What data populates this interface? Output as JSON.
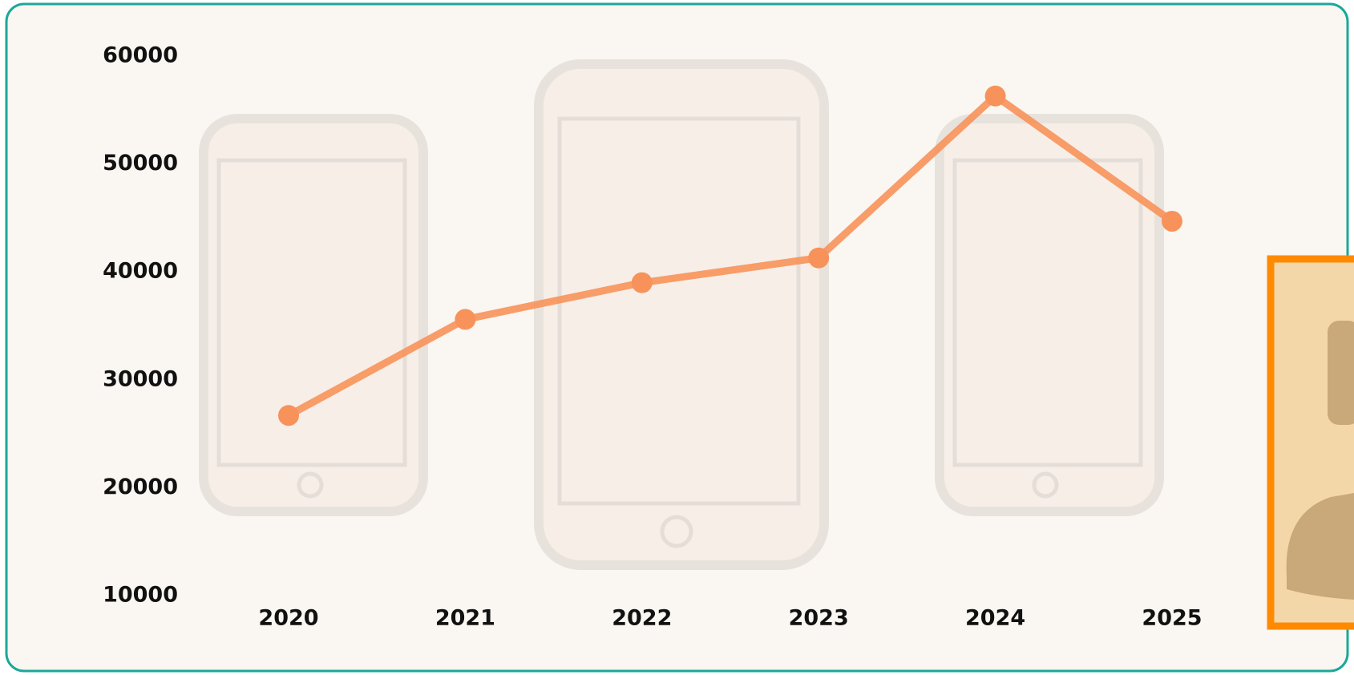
{
  "chart_data": {
    "type": "line",
    "categories": [
      "2020",
      "2021",
      "2022",
      "2023",
      "2024",
      "2025"
    ],
    "values": [
      26700,
      35600,
      39000,
      41300,
      56300,
      44700
    ],
    "color": "#f7925a",
    "ylim": [
      10000,
      60000
    ],
    "yticks": [
      10000,
      20000,
      30000,
      40000,
      50000,
      60000
    ],
    "grid": false
  }
}
